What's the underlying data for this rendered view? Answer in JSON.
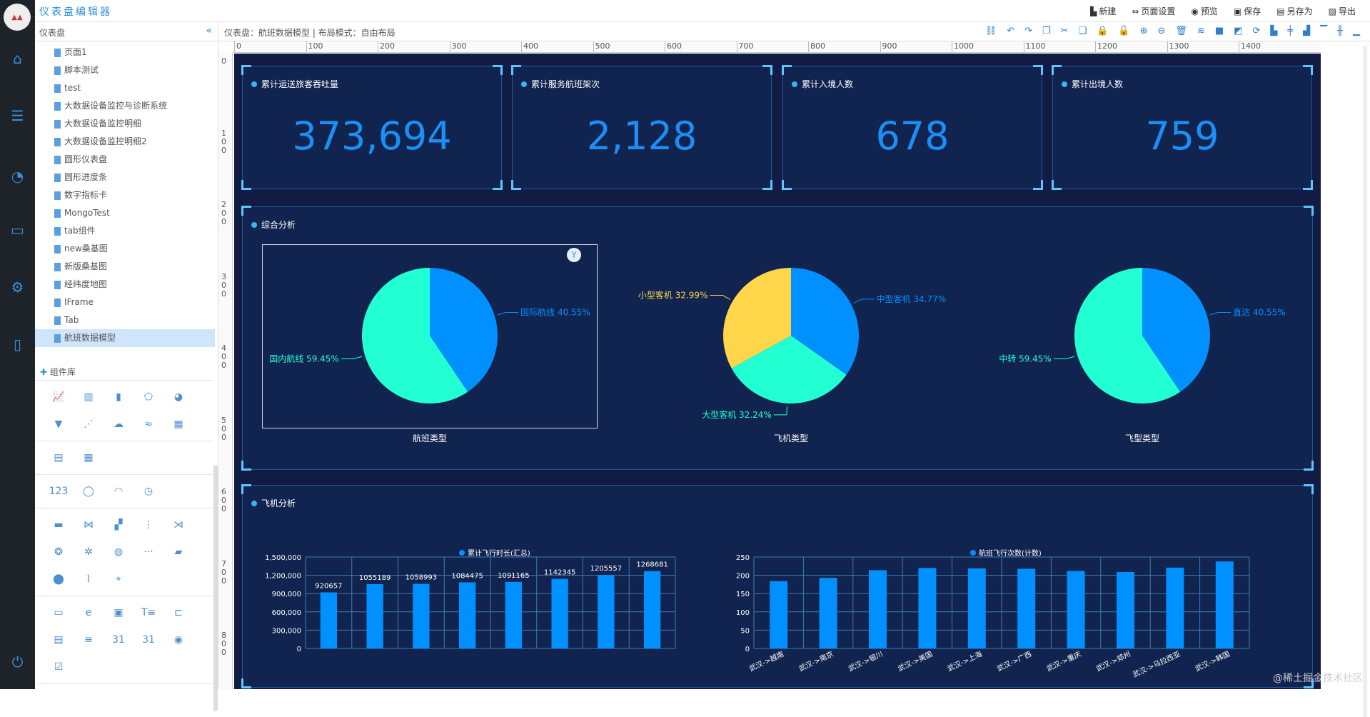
{
  "app": {
    "title": "仪表盘编辑器"
  },
  "header_actions": [
    {
      "icon": "new-file-icon",
      "glyph": "▙",
      "label": "新建"
    },
    {
      "icon": "page-settings-icon",
      "glyph": "⇔",
      "label": "页面设置"
    },
    {
      "icon": "eye-icon",
      "glyph": "◉",
      "label": "预览"
    },
    {
      "icon": "save-icon",
      "glyph": "▣",
      "label": "保存"
    },
    {
      "icon": "save-as-icon",
      "glyph": "▤",
      "label": "另存为"
    },
    {
      "icon": "image-export-icon",
      "glyph": "▨",
      "label": "导出"
    }
  ],
  "nav": [
    {
      "icon": "home-icon",
      "glyph": "⌂"
    },
    {
      "icon": "database-icon",
      "glyph": "☰"
    },
    {
      "icon": "dashboard-icon",
      "glyph": "◔"
    },
    {
      "icon": "monitor-icon",
      "glyph": "▭"
    },
    {
      "icon": "gears-icon",
      "glyph": "⚙"
    },
    {
      "icon": "pdf-icon",
      "glyph": "▯"
    },
    {
      "icon": "power-icon",
      "glyph": "⏻"
    }
  ],
  "sidebar": {
    "title": "仪表盘",
    "collapse": "«",
    "items": [
      "页面1",
      "脚本测试",
      "test",
      "大数据设备监控与诊断系统",
      "大数据设备监控明细",
      "大数据设备监控明细2",
      "圆形仪表盘",
      "圆形进度条",
      "数字指标卡",
      "MongoTest",
      "tab组件",
      "new桑基图",
      "新版桑基图",
      "经纬度地图",
      "IFrame",
      "Tab",
      "航班数据模型"
    ],
    "selected": "航班数据模型",
    "library_title": "组件库",
    "library_groups": [
      [
        "📈",
        "▥",
        "▮",
        "⬠",
        "◕",
        "▼",
        "⋰",
        "☁",
        "≈",
        "▦"
      ],
      [
        "▤",
        "▦"
      ],
      [
        "123",
        "◯",
        "◠",
        "◷"
      ],
      [
        "▬",
        "⋈",
        "▞",
        "⋮",
        "⋊",
        "❂",
        "✲",
        "◍",
        "···",
        "▰",
        "⬤",
        "⌇",
        "⌖"
      ],
      [
        "▭",
        "e",
        "▣",
        "T≡",
        "⊏",
        "▤",
        "≡",
        "31",
        "31",
        "◉",
        "☑"
      ]
    ]
  },
  "toolbar": {
    "breadcrumb": "仪表盘：航班数据模型 | 布局模式：自由布局",
    "icons": [
      "link-icon",
      "undo-icon",
      "redo-icon",
      "copy-icon",
      "cut-icon",
      "paste-icon",
      "lock-icon",
      "unlock-icon",
      "zoom-in-icon",
      "zoom-out-icon",
      "delete-icon",
      "layers-icon",
      "bring-front-icon",
      "send-back-icon",
      "reorder-icon",
      "align-left-icon",
      "align-center-icon",
      "align-right-icon",
      "align-top-icon",
      "align-middle-icon",
      "align-bottom-icon"
    ],
    "glyphs": [
      "⛓",
      "↶",
      "↷",
      "❐",
      "✂",
      "❏",
      "🔒",
      "🔓",
      "⊕",
      "⊖",
      "🗑",
      "≋",
      "■",
      "◩",
      "⟳",
      "▙",
      "╪",
      "▟",
      "▔",
      "╫",
      "▁"
    ]
  },
  "ruler": {
    "top": [
      "0",
      "100",
      "200",
      "300",
      "400",
      "500",
      "600",
      "700",
      "800",
      "900",
      "1000",
      "1100",
      "1200",
      "1300",
      "1400"
    ],
    "left": [
      "0",
      "100",
      "200",
      "300",
      "400",
      "500",
      "600",
      "700",
      "800"
    ]
  },
  "kpis": [
    {
      "title": "累计运送旅客吞吐量",
      "value": "373,694"
    },
    {
      "title": "累计服务航班架次",
      "value": "2,128"
    },
    {
      "title": "累计入境人数",
      "value": "678"
    },
    {
      "title": "累计出境人数",
      "value": "759"
    }
  ],
  "colors": {
    "accent": "#1b8ff5",
    "blue": "#0090ff",
    "cyan": "#22ffd3",
    "yellow": "#ffd54a",
    "panel": "#10244f",
    "canvas": "#121b43"
  },
  "analysis": {
    "title": "综合分析",
    "filter_icon": "filter-icon"
  },
  "plane": {
    "title": "飞机分析"
  },
  "chart_data": [
    {
      "type": "pie",
      "title": "航班类型",
      "slices": [
        {
          "name": "国际航线",
          "value": 40.55,
          "label": "国际航线 40.55%",
          "color": "#0090ff"
        },
        {
          "name": "国内航线",
          "value": 59.45,
          "label": "国内航线 59.45%",
          "color": "#22ffd3"
        }
      ]
    },
    {
      "type": "pie",
      "title": "飞机类型",
      "slices": [
        {
          "name": "中型客机",
          "value": 34.77,
          "label": "中型客机 34.77%",
          "color": "#0090ff"
        },
        {
          "name": "大型客机",
          "value": 32.24,
          "label": "大型客机 32.24%",
          "color": "#22ffd3"
        },
        {
          "name": "小型客机",
          "value": 32.99,
          "label": "小型客机 32.99%",
          "color": "#ffd54a"
        }
      ]
    },
    {
      "type": "pie",
      "title": "飞型类型",
      "slices": [
        {
          "name": "直达",
          "value": 40.55,
          "label": "直达 40.55%",
          "color": "#0090ff"
        },
        {
          "name": "中转",
          "value": 59.45,
          "label": "中转 59.45%",
          "color": "#22ffd3"
        }
      ]
    },
    {
      "type": "bar",
      "legend": "累计飞行时长(汇总)",
      "values": [
        920657,
        1055189,
        1058993,
        1084475,
        1091165,
        1142345,
        1205557,
        1268681
      ],
      "ylim": [
        0,
        1500000
      ],
      "yticks": [
        "0",
        "300,000",
        "600,000",
        "900,000",
        "1,200,000",
        "1,500,000"
      ],
      "grid": true,
      "data_labels": true
    },
    {
      "type": "bar",
      "legend": "航班飞行次数(计数)",
      "categories": [
        "武汉->越南",
        "武汉->南京",
        "武汉->银川",
        "武汉->美国",
        "武汉->上海",
        "武汉->广西",
        "武汉->重庆",
        "武汉->郑州",
        "武汉->马拉西亚",
        "武汉->韩国"
      ],
      "values": [
        184,
        193,
        214,
        220,
        219,
        218,
        212,
        209,
        221,
        238
      ],
      "ylim": [
        0,
        250
      ],
      "yticks": [
        "0",
        "50",
        "100",
        "150",
        "200",
        "250"
      ],
      "grid": true
    }
  ],
  "watermark": "@稀土掘金技术社区"
}
